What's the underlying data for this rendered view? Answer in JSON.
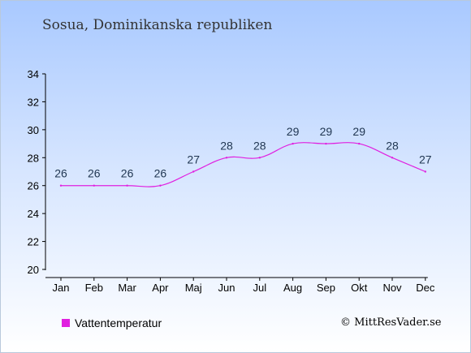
{
  "colors": {
    "series": "#e020e0",
    "axis": "#000000"
  },
  "chart_data": {
    "type": "line",
    "title": "Sosua, Dominikanska republiken",
    "categories": [
      "Jan",
      "Feb",
      "Mar",
      "Apr",
      "Maj",
      "Jun",
      "Jul",
      "Aug",
      "Sep",
      "Okt",
      "Nov",
      "Dec"
    ],
    "series": [
      {
        "name": "Vattentemperatur",
        "values": [
          26,
          26,
          26,
          26,
          27,
          28,
          28,
          29,
          29,
          29,
          28,
          27
        ]
      }
    ],
    "data_labels": [
      "26",
      "26",
      "26",
      "26",
      "27",
      "28",
      "28",
      "29",
      "29",
      "29",
      "28",
      "27"
    ],
    "ylim": [
      20,
      34
    ],
    "yticks": [
      20,
      22,
      24,
      26,
      28,
      30,
      32,
      34
    ],
    "grid": false,
    "legend_position": "bottom-left"
  },
  "credit": "© MittResVader.se"
}
